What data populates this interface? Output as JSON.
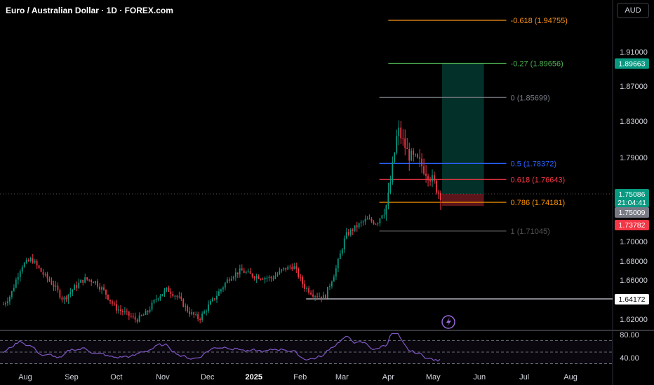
{
  "header": {
    "title": "Euro / Australian Dollar · 1D · FOREX.com",
    "currency_button": "AUD"
  },
  "chart_data": {
    "type": "candlestick",
    "x_ticks": [
      "Aug",
      "Sep",
      "Oct",
      "Nov",
      "Dec",
      "2025",
      "Feb",
      "Mar",
      "Apr",
      "May",
      "Jun",
      "Jul",
      "Aug"
    ],
    "y_ticks": [
      "1.91000",
      "1.87000",
      "1.83000",
      "1.79000",
      "1.70000",
      "1.68000",
      "1.66000",
      "1.62000"
    ],
    "price_scale_break": [
      1.75,
      1.72
    ],
    "fibonacci": [
      {
        "label": "-0.618 (1.94755)",
        "value": 1.94755,
        "color": "#f7931a"
      },
      {
        "label": "-0.27 (1.89656)",
        "value": 1.89656,
        "color": "#4caf50"
      },
      {
        "label": "0 (1.85699)",
        "value": 1.85699,
        "color": "#787b86"
      },
      {
        "label": "0.5 (1.78372)",
        "value": 1.78372,
        "color": "#2962ff"
      },
      {
        "label": "0.618 (1.76643)",
        "value": 1.76643,
        "color": "#f23645"
      },
      {
        "label": "0.786 (1.74181)",
        "value": 1.74181,
        "color": "#ff9800"
      },
      {
        "label": "1 (1.71045)",
        "value": 1.71045,
        "color": "#555555"
      }
    ],
    "price_labels": [
      {
        "text": "1.89663",
        "color": "#089981"
      },
      {
        "text": "1.75086",
        "color": "#089981",
        "countdown": "21:04:41"
      },
      {
        "text": "1.75009",
        "color": "#787b86"
      },
      {
        "text": "1.73782",
        "color": "#f23645"
      },
      {
        "text": "1.64172",
        "color": "#ffffff"
      }
    ],
    "horizontal_line": 1.64172,
    "position": {
      "entry": 1.75086,
      "target": 1.89663,
      "stop": 1.73782
    },
    "approx_close": [
      [
        "2024-07-15",
        1.632
      ],
      [
        "2024-07-22",
        1.646
      ],
      [
        "2024-07-29",
        1.675
      ],
      [
        "2024-08-05",
        1.682
      ],
      [
        "2024-08-12",
        1.667
      ],
      [
        "2024-08-19",
        1.656
      ],
      [
        "2024-08-26",
        1.641
      ],
      [
        "2024-09-02",
        1.652
      ],
      [
        "2024-09-09",
        1.661
      ],
      [
        "2024-09-16",
        1.659
      ],
      [
        "2024-09-23",
        1.648
      ],
      [
        "2024-09-30",
        1.632
      ],
      [
        "2024-10-07",
        1.626
      ],
      [
        "2024-10-14",
        1.619
      ],
      [
        "2024-10-21",
        1.627
      ],
      [
        "2024-10-28",
        1.644
      ],
      [
        "2024-11-04",
        1.651
      ],
      [
        "2024-11-11",
        1.643
      ],
      [
        "2024-11-18",
        1.628
      ],
      [
        "2024-11-25",
        1.62
      ],
      [
        "2024-12-02",
        1.636
      ],
      [
        "2024-12-09",
        1.65
      ],
      [
        "2024-12-16",
        1.664
      ],
      [
        "2024-12-23",
        1.67
      ],
      [
        "2024-12-30",
        1.665
      ],
      [
        "2025-01-06",
        1.663
      ],
      [
        "2025-01-13",
        1.662
      ],
      [
        "2025-01-20",
        1.671
      ],
      [
        "2025-01-27",
        1.675
      ],
      [
        "2025-02-03",
        1.654
      ],
      [
        "2025-02-10",
        1.646
      ],
      [
        "2025-02-17",
        1.643
      ],
      [
        "2025-02-24",
        1.669
      ],
      [
        "2025-03-03",
        1.706
      ],
      [
        "2025-03-10",
        1.715
      ],
      [
        "2025-03-17",
        1.723
      ],
      [
        "2025-03-24",
        1.719
      ],
      [
        "2025-03-31",
        1.741
      ],
      [
        "2025-04-07",
        1.821
      ],
      [
        "2025-04-14",
        1.793
      ],
      [
        "2025-04-21",
        1.785
      ],
      [
        "2025-04-28",
        1.771
      ],
      [
        "2025-05-05",
        1.751
      ]
    ],
    "rsi": {
      "y_ticks": [
        "80.00",
        "40.00"
      ],
      "levels": [
        70,
        50,
        30
      ]
    }
  }
}
